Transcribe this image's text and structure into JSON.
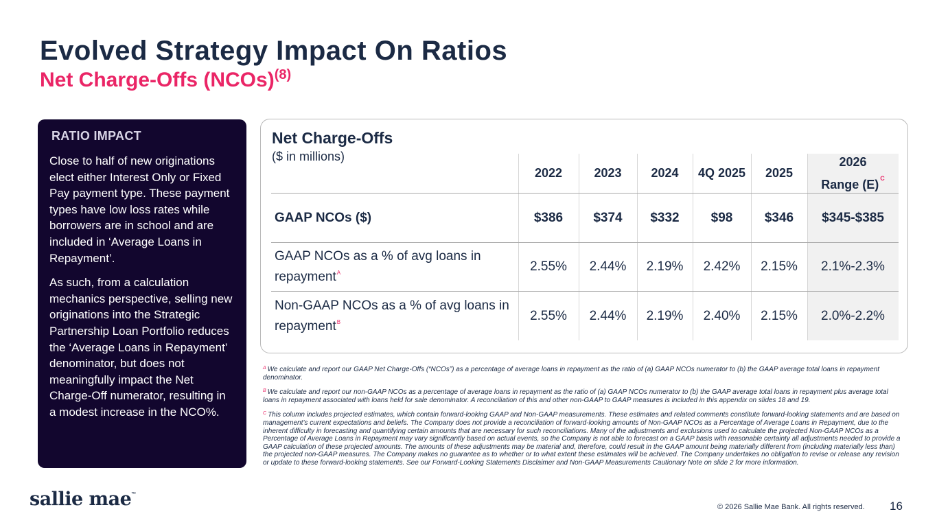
{
  "header": {
    "title": "Evolved Strategy Impact On Ratios",
    "subtitle": "Net Charge-Offs (NCOs)",
    "subtitle_note": "(8)"
  },
  "ratio_impact": {
    "title": "RATIO IMPACT",
    "paragraph1": "Close to half of new originations elect either Interest Only or Fixed Pay payment type. These payment types have low loss rates while borrowers are in school and are included in ‘Average Loans in Repayment’.",
    "paragraph2": "As such, from a calculation mechanics perspective, selling new originations into the Strategic Partnership Loan Portfolio reduces the ‘Average Loans in Repayment’ denominator, but does not meaningfully impact the Net Charge-Off numerator, resulting in a modest increase in the NCO%."
  },
  "table": {
    "title": "Net Charge-Offs",
    "subtitle": "($ in millions)",
    "columns": [
      "2022",
      "2023",
      "2024",
      "4Q 2025",
      "2025",
      "2026 Range (E)"
    ],
    "last_col_line1": "2026",
    "last_col_line2": "Range (E)",
    "last_col_note": "C",
    "rows": [
      {
        "label": "GAAP NCOs ($)",
        "note": "",
        "values": [
          "$386",
          "$374",
          "$332",
          "$98",
          "$346",
          "$345-$385"
        ]
      },
      {
        "label": "GAAP NCOs as a % of avg loans in repayment",
        "note": "A",
        "values": [
          "2.55%",
          "2.44%",
          "2.19%",
          "2.42%",
          "2.15%",
          "2.1%-2.3%"
        ]
      },
      {
        "label": "Non-GAAP NCOs as a % of avg loans in repayment",
        "note": "B",
        "values": [
          "2.55%",
          "2.44%",
          "2.19%",
          "2.40%",
          "2.15%",
          "2.0%-2.2%"
        ]
      }
    ]
  },
  "footnotes": [
    {
      "mark": "A",
      "text": "We calculate and report our GAAP Net Charge-Offs (“NCOs”) as a percentage of average loans in repayment as the ratio of (a) GAAP NCOs numerator to (b) the GAAP average total loans in repayment denominator."
    },
    {
      "mark": "B",
      "text": "We calculate and report our non-GAAP NCOs as a percentage of average loans in repayment as the ratio of (a) GAAP NCOs numerator to (b) the GAAP average total loans in repayment plus average total loans in repayment associated with loans held for sale denominator. A reconciliation of this and other non-GAAP to GAAP measures is included in this appendix on slides 18 and 19."
    },
    {
      "mark": "C",
      "text": "This column includes projected estimates, which contain forward-looking GAAP and Non-GAAP measurements. These estimates and related comments constitute forward-looking statements and are based on management’s current expectations and beliefs. The Company does not provide a reconciliation of forward-looking amounts of Non-GAAP NCOs as a Percentage of Average Loans in Repayment, due to the inherent difficulty in forecasting and quantifying certain amounts that are necessary for such reconciliations. Many of the adjustments and exclusions used to calculate the projected Non-GAAP NCOs as a Percentage of Average Loans in Repayment may vary significantly based on actual events, so the Company is not able to forecast on a GAAP basis with reasonable certainty all adjustments needed to provide a GAAP calculation of these projected amounts. The amounts of these adjustments may be material and, therefore, could result in the GAAP amount being materially different from (including materially less than) the projected non-GAAP measures. The Company makes no guarantee as to whether or to what extent these estimates will be achieved. The Company undertakes no obligation to revise or release any revision or update to these forward-looking statements. See our Forward-Looking Statements Disclaimer and Non-GAAP Measurements Cautionary Note on slide 2 for more information."
    }
  ],
  "footer": {
    "logo": "sallie mae",
    "logo_tm": "™",
    "copyright": "© 2026 Sallie Mae Bank. All rights reserved.",
    "page_number": "16"
  },
  "colors": {
    "navy": "#1b2a44",
    "pink": "#ea2566",
    "panel": "#12062e"
  }
}
